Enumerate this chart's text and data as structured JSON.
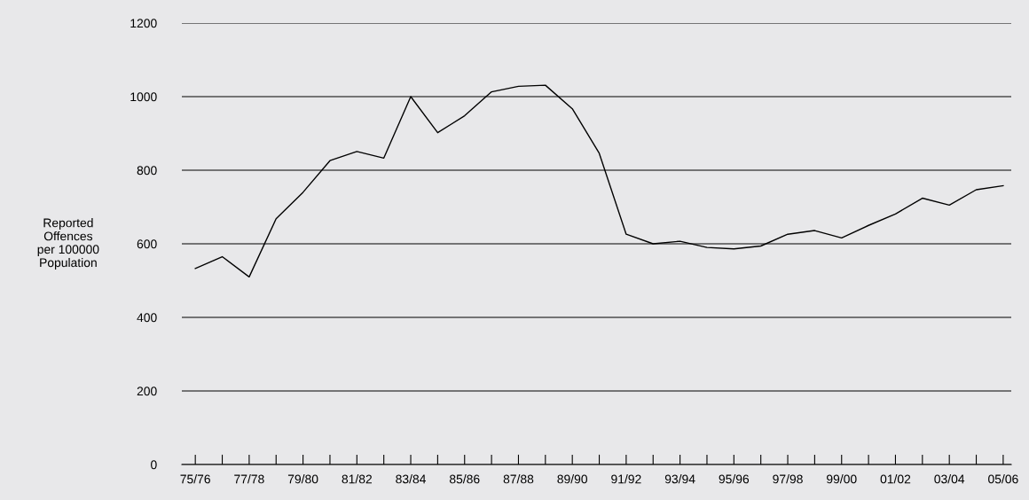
{
  "chart_data": {
    "type": "line",
    "ylabel": "Reported\nOffences\nper 100000\nPopulation",
    "categories": [
      "75/76",
      null,
      "77/78",
      null,
      "79/80",
      null,
      "81/82",
      null,
      "83/84",
      null,
      "85/86",
      null,
      "87/88",
      null,
      "89/90",
      null,
      "91/92",
      null,
      "93/94",
      null,
      "95/96",
      null,
      "97/98",
      null,
      "99/00",
      null,
      "01/02",
      null,
      "03/04",
      null,
      "05/06"
    ],
    "series": [
      {
        "color": "#000000",
        "values": [
          533,
          565,
          510,
          668,
          740,
          826,
          851,
          833,
          1000,
          902,
          948,
          1013,
          1028,
          1031,
          967,
          846,
          626,
          600,
          607,
          590,
          586,
          594,
          626,
          636,
          616,
          650,
          681,
          724,
          705,
          747,
          758
        ]
      }
    ],
    "ylim": [
      0,
      1200
    ],
    "yticks": [
      0,
      200,
      400,
      600,
      800,
      1000,
      1200
    ],
    "grid": "y",
    "marker": "none",
    "line_style": "solid",
    "legend": false
  }
}
